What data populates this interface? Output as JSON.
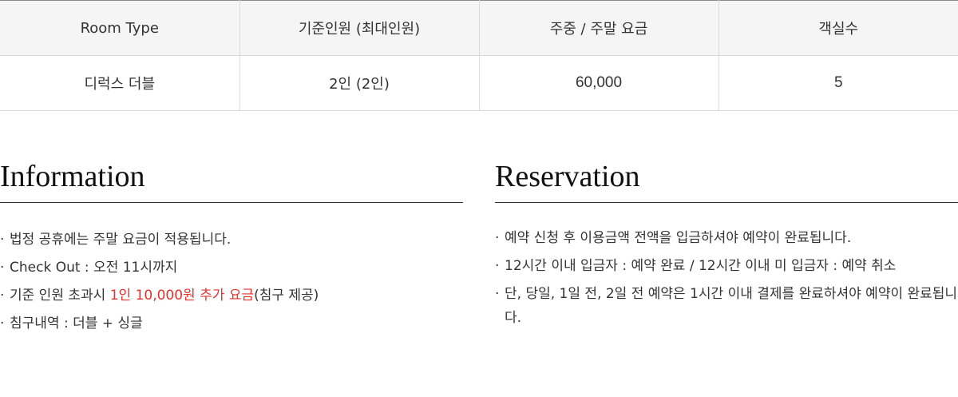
{
  "table": {
    "headers": [
      "Room Type",
      "기준인원 (최대인원)",
      "주중 / 주말 요금",
      "객실수"
    ],
    "rows": [
      [
        "디럭스 더블",
        "2인 (2인)",
        "60,000",
        "5"
      ]
    ]
  },
  "information": {
    "title": "Information",
    "items": [
      {
        "text": "법정 공휴에는 주말 요금이 적용됩니다."
      },
      {
        "text": "Check Out : 오전 11시까지"
      },
      {
        "prefix": "기준 인원 초과시 ",
        "highlight": "1인 10,000원 추가 요금",
        "suffix": "(침구 제공)"
      },
      {
        "text": "침구내역 :  더블 + 싱글"
      }
    ]
  },
  "reservation": {
    "title": "Reservation",
    "items": [
      "예약 신청 후 이용금액 전액을 입금하셔야 예약이 완료됩니다.",
      "12시간 이내 입금자 : 예약 완료 / 12시간 이내 미 입금자 : 예약 취소",
      "단, 당일, 1일 전, 2일 전 예약은 1시간 이내 결제를 완료하셔야 예약이 완료됩니다."
    ]
  },
  "colors": {
    "accent": "#e5322d",
    "header_bg": "#f5f5f5",
    "border": "#dcdcdc"
  }
}
